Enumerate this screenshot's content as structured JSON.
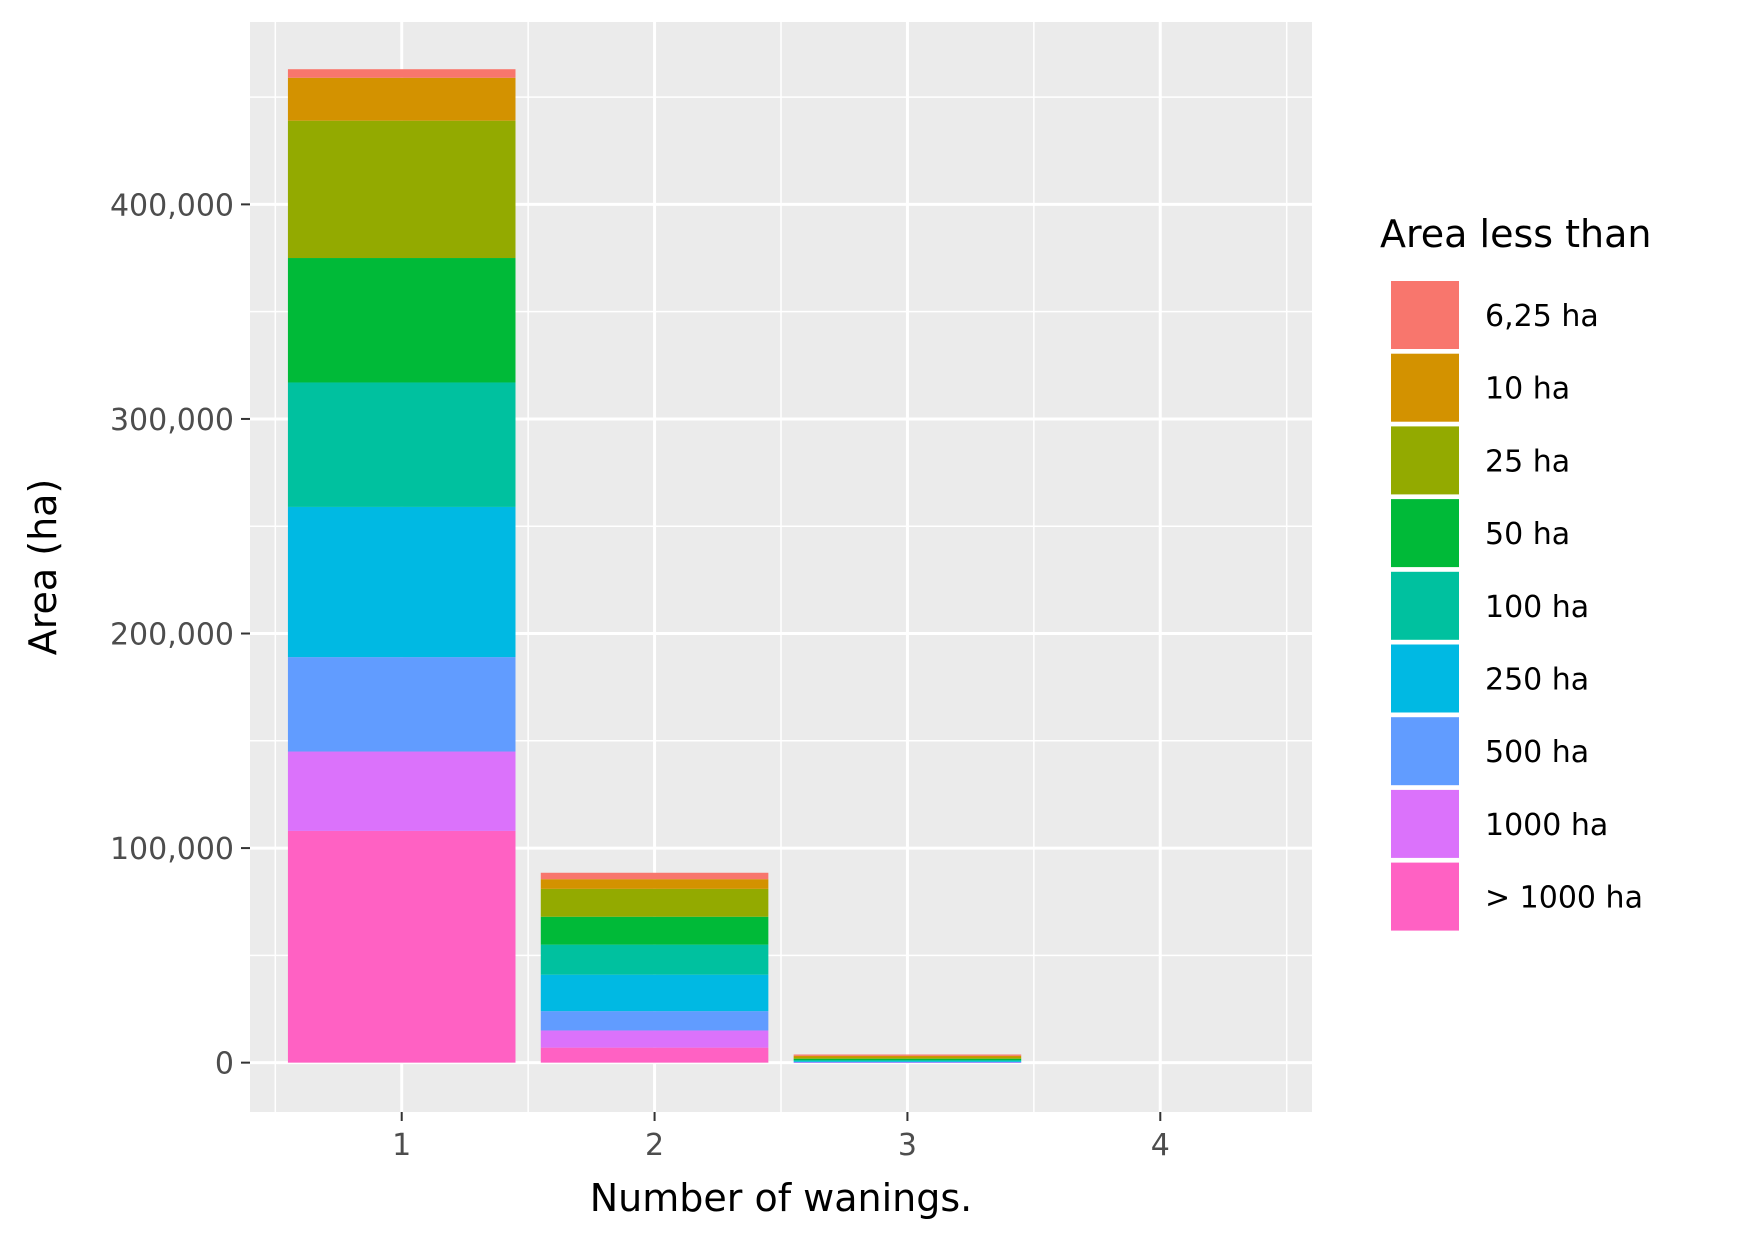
{
  "chart_data": {
    "type": "bar",
    "stacked": true,
    "categories": [
      "1",
      "2",
      "3",
      "4"
    ],
    "xlabel": "Number of wanings.",
    "ylabel": "Area (ha)",
    "ylim": [
      -23000,
      485000
    ],
    "yticks": [
      0,
      100000,
      200000,
      300000,
      400000
    ],
    "ytick_labels": [
      "0",
      "100,000",
      "200,000",
      "300,000",
      "400,000"
    ],
    "grid": true,
    "legend": {
      "title": "Area less than",
      "position": "right"
    },
    "series": [
      {
        "name": "6,25 ha",
        "color": "#F8766D",
        "values": [
          4000,
          3000,
          600,
          0
        ]
      },
      {
        "name": "10 ha",
        "color": "#D39200",
        "values": [
          20000,
          4500,
          800,
          0
        ]
      },
      {
        "name": "25 ha",
        "color": "#93AA00",
        "values": [
          64000,
          13000,
          600,
          0
        ]
      },
      {
        "name": "50 ha",
        "color": "#00BA38",
        "values": [
          58000,
          13000,
          600,
          0
        ]
      },
      {
        "name": "100 ha",
        "color": "#00C19F",
        "values": [
          58000,
          14000,
          500,
          0
        ]
      },
      {
        "name": "250 ha",
        "color": "#00B9E3",
        "values": [
          70000,
          17000,
          400,
          0
        ]
      },
      {
        "name": "500 ha",
        "color": "#619CFF",
        "values": [
          44000,
          9000,
          200,
          0
        ]
      },
      {
        "name": "1000 ha",
        "color": "#DB72FB",
        "values": [
          37000,
          8000,
          100,
          0
        ]
      },
      {
        "name": "> 1000 ha",
        "color": "#FF61C3",
        "values": [
          108000,
          7000,
          0,
          0
        ]
      }
    ]
  }
}
